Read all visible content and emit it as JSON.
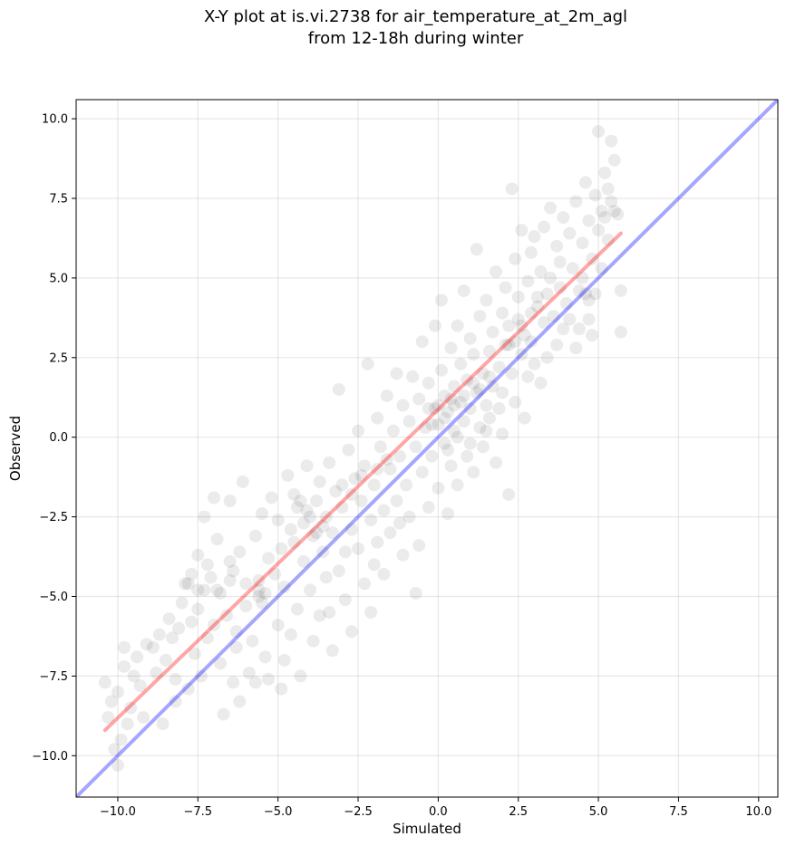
{
  "chart_data": {
    "type": "scatter",
    "title": "X-Y plot at is.vi.2738 for air_temperature_at_2m_agl",
    "subtitle": "from 12-18h during winter",
    "xlabel": "Simulated",
    "ylabel": "Observed",
    "xlim": [
      -11.3,
      10.6
    ],
    "ylim": [
      -11.3,
      10.6
    ],
    "xticks": [
      -10.0,
      -7.5,
      -5.0,
      -2.5,
      0.0,
      2.5,
      5.0,
      7.5,
      10.0
    ],
    "yticks": [
      -10.0,
      -7.5,
      -5.0,
      -2.5,
      0.0,
      2.5,
      5.0,
      7.5,
      10.0
    ],
    "xtick_labels": [
      "−10.0",
      "−7.5",
      "−5.0",
      "−2.5",
      "0.0",
      "2.5",
      "5.0",
      "7.5",
      "10.0"
    ],
    "ytick_labels": [
      "−10.0",
      "−7.5",
      "−5.0",
      "−2.5",
      "0.0",
      "2.5",
      "5.0",
      "7.5",
      "10.0"
    ],
    "grid": true,
    "marker_color": "#000000",
    "marker_alpha": 0.08,
    "lines": [
      {
        "role": "one-to-one",
        "color": "#0000ff",
        "alpha": 0.35,
        "x": [
          -11.3,
          10.6
        ],
        "y": [
          -11.3,
          10.6
        ]
      },
      {
        "role": "regression-fit",
        "color": "#ff0000",
        "alpha": 0.35,
        "x": [
          -10.4,
          5.7
        ],
        "y": [
          -9.2,
          6.4
        ]
      }
    ],
    "points": [
      [
        -10.4,
        -7.7
      ],
      [
        -10.3,
        -8.8
      ],
      [
        -10.2,
        -8.3
      ],
      [
        -10.1,
        -9.8
      ],
      [
        -10.0,
        -10.3
      ],
      [
        -10.0,
        -8.0
      ],
      [
        -9.9,
        -9.5
      ],
      [
        -9.8,
        -7.2
      ],
      [
        -9.8,
        -6.6
      ],
      [
        -9.7,
        -9.0
      ],
      [
        -9.6,
        -8.5
      ],
      [
        -9.5,
        -7.5
      ],
      [
        -9.4,
        -6.9
      ],
      [
        -9.3,
        -7.8
      ],
      [
        -9.1,
        -6.5
      ],
      [
        -8.9,
        -6.6
      ],
      [
        -8.8,
        -7.4
      ],
      [
        -8.7,
        -6.2
      ],
      [
        -8.6,
        -9.0
      ],
      [
        -8.5,
        -7.0
      ],
      [
        -8.4,
        -5.7
      ],
      [
        -8.3,
        -6.3
      ],
      [
        -8.2,
        -8.3
      ],
      [
        -8.1,
        -6.0
      ],
      [
        -8.0,
        -5.2
      ],
      [
        -7.9,
        -4.6
      ],
      [
        -7.8,
        -7.9
      ],
      [
        -7.7,
        -5.8
      ],
      [
        -7.7,
        -4.3
      ],
      [
        -7.6,
        -6.8
      ],
      [
        -7.5,
        -5.4
      ],
      [
        -7.5,
        -3.7
      ],
      [
        -7.4,
        -7.5
      ],
      [
        -7.3,
        -4.8
      ],
      [
        -7.3,
        -2.5
      ],
      [
        -7.2,
        -6.3
      ],
      [
        -7.1,
        -4.4
      ],
      [
        -7.0,
        -1.9
      ],
      [
        -7.0,
        -5.9
      ],
      [
        -6.9,
        -3.2
      ],
      [
        -6.8,
        -7.1
      ],
      [
        -6.8,
        -4.9
      ],
      [
        -6.7,
        -8.7
      ],
      [
        -6.6,
        -5.6
      ],
      [
        -6.5,
        -3.9
      ],
      [
        -6.5,
        -2.0
      ],
      [
        -6.4,
        -7.7
      ],
      [
        -6.4,
        -4.2
      ],
      [
        -6.3,
        -6.1
      ],
      [
        -6.2,
        -8.3
      ],
      [
        -6.2,
        -3.6
      ],
      [
        -6.1,
        -1.4
      ],
      [
        -6.0,
        -5.3
      ],
      [
        -6.0,
        -4.6
      ],
      [
        -5.9,
        -7.4
      ],
      [
        -5.8,
        -6.4
      ],
      [
        -5.7,
        -3.1
      ],
      [
        -5.6,
        -5.0
      ],
      [
        -5.6,
        -4.8
      ],
      [
        -5.5,
        -2.4
      ],
      [
        -5.5,
        -5.2
      ],
      [
        -5.4,
        -6.9
      ],
      [
        -5.3,
        -3.8
      ],
      [
        -5.3,
        -7.6
      ],
      [
        -5.2,
        -1.9
      ],
      [
        -5.1,
        -4.3
      ],
      [
        -5.0,
        -2.6
      ],
      [
        -5.0,
        -5.9
      ],
      [
        -4.9,
        -3.5
      ],
      [
        -4.8,
        -7.0
      ],
      [
        -4.8,
        -4.7
      ],
      [
        -4.7,
        -1.2
      ],
      [
        -4.6,
        -2.9
      ],
      [
        -4.6,
        -6.2
      ],
      [
        -4.5,
        -3.3
      ],
      [
        -4.4,
        -2.2
      ],
      [
        -4.4,
        -5.4
      ],
      [
        -4.3,
        -7.5
      ],
      [
        -4.2,
        -2.7
      ],
      [
        -4.2,
        -3.9
      ],
      [
        -4.1,
        -2.3
      ],
      [
        -4.1,
        -0.9
      ],
      [
        -4.0,
        -4.8
      ],
      [
        -3.9,
        -3.1
      ],
      [
        -3.9,
        -6.4
      ],
      [
        -3.8,
        -2.0
      ],
      [
        -3.7,
        -1.4
      ],
      [
        -3.7,
        -5.6
      ],
      [
        -3.6,
        -3.6
      ],
      [
        -3.5,
        -2.5
      ],
      [
        -3.5,
        -4.4
      ],
      [
        -3.4,
        -0.8
      ],
      [
        -3.3,
        -3.0
      ],
      [
        -3.3,
        -6.7
      ],
      [
        -3.2,
        -1.7
      ],
      [
        -3.1,
        -4.2
      ],
      [
        -3.1,
        1.5
      ],
      [
        -3.0,
        -2.2
      ],
      [
        -2.9,
        -3.6
      ],
      [
        -2.9,
        -5.1
      ],
      [
        -2.8,
        -0.4
      ],
      [
        -2.7,
        -2.9
      ],
      [
        -2.7,
        -6.1
      ],
      [
        -2.6,
        -1.3
      ],
      [
        -2.5,
        -3.5
      ],
      [
        -2.5,
        0.2
      ],
      [
        -2.4,
        -2.0
      ],
      [
        -2.3,
        -4.6
      ],
      [
        -2.3,
        -0.9
      ],
      [
        -2.2,
        2.3
      ],
      [
        -2.1,
        -2.6
      ],
      [
        -2.1,
        -5.5
      ],
      [
        -2.0,
        -1.5
      ],
      [
        -1.9,
        0.6
      ],
      [
        -1.9,
        -3.3
      ],
      [
        -1.8,
        -0.3
      ],
      [
        -1.7,
        -2.3
      ],
      [
        -1.7,
        -4.3
      ],
      [
        -1.6,
        1.3
      ],
      [
        -1.5,
        -1.0
      ],
      [
        -1.5,
        -3.0
      ],
      [
        -1.4,
        0.2
      ],
      [
        -1.3,
        -2.0
      ],
      [
        -1.3,
        2.0
      ],
      [
        -1.2,
        -0.6
      ],
      [
        -1.1,
        -3.7
      ],
      [
        -1.1,
        1.0
      ],
      [
        -1.0,
        -1.5
      ],
      [
        -0.9,
        0.5
      ],
      [
        -0.9,
        -2.5
      ],
      [
        -0.8,
        1.9
      ],
      [
        -0.7,
        -0.3
      ],
      [
        -0.7,
        -4.9
      ],
      [
        -0.6,
        1.2
      ],
      [
        -0.5,
        -1.1
      ],
      [
        -0.5,
        3.0
      ],
      [
        -0.4,
        0.3
      ],
      [
        -0.3,
        -2.2
      ],
      [
        -0.3,
        1.7
      ],
      [
        -0.2,
        -0.6
      ],
      [
        -0.1,
        3.5
      ],
      [
        -0.1,
        0.9
      ],
      [
        0.0,
        -1.6
      ],
      [
        0.0,
        0.4
      ],
      [
        0.1,
        2.1
      ],
      [
        0.1,
        4.3
      ],
      [
        0.2,
        -0.2
      ],
      [
        0.2,
        1.3
      ],
      [
        0.3,
        -2.4
      ],
      [
        0.3,
        0.8
      ],
      [
        0.4,
        2.8
      ],
      [
        0.4,
        -0.9
      ],
      [
        0.5,
        1.6
      ],
      [
        0.5,
        0.2
      ],
      [
        0.6,
        3.5
      ],
      [
        0.6,
        -1.5
      ],
      [
        0.7,
        1.1
      ],
      [
        0.7,
        2.3
      ],
      [
        0.8,
        0.5
      ],
      [
        0.8,
        4.6
      ],
      [
        0.9,
        -0.6
      ],
      [
        0.9,
        1.8
      ],
      [
        1.0,
        0.9
      ],
      [
        1.0,
        3.1
      ],
      [
        1.1,
        -1.1
      ],
      [
        1.1,
        2.6
      ],
      [
        1.2,
        1.4
      ],
      [
        1.2,
        5.9
      ],
      [
        1.3,
        0.3
      ],
      [
        1.3,
        3.8
      ],
      [
        1.4,
        2.0
      ],
      [
        1.4,
        -0.3
      ],
      [
        1.5,
        1.0
      ],
      [
        1.5,
        4.3
      ],
      [
        1.6,
        2.7
      ],
      [
        1.6,
        0.6
      ],
      [
        1.7,
        3.3
      ],
      [
        1.7,
        1.6
      ],
      [
        1.8,
        -0.8
      ],
      [
        1.8,
        5.2
      ],
      [
        1.9,
        2.2
      ],
      [
        1.9,
        0.9
      ],
      [
        2.0,
        3.9
      ],
      [
        2.0,
        1.4
      ],
      [
        2.1,
        4.7
      ],
      [
        2.1,
        2.9
      ],
      [
        2.2,
        -1.8
      ],
      [
        2.2,
        3.5
      ],
      [
        2.3,
        7.8
      ],
      [
        2.3,
        2.0
      ],
      [
        2.4,
        5.6
      ],
      [
        2.4,
        1.1
      ],
      [
        2.5,
        3.7
      ],
      [
        2.5,
        4.4
      ],
      [
        2.6,
        2.6
      ],
      [
        2.6,
        6.5
      ],
      [
        2.7,
        0.6
      ],
      [
        2.7,
        3.2
      ],
      [
        2.8,
        4.9
      ],
      [
        2.8,
        1.9
      ],
      [
        2.9,
        5.8
      ],
      [
        2.9,
        3.0
      ],
      [
        3.0,
        6.3
      ],
      [
        3.0,
        2.3
      ],
      [
        3.1,
        4.1
      ],
      [
        3.2,
        5.2
      ],
      [
        3.2,
        1.7
      ],
      [
        3.3,
        3.6
      ],
      [
        3.3,
        6.6
      ],
      [
        3.4,
        4.5
      ],
      [
        3.4,
        2.5
      ],
      [
        3.5,
        5.0
      ],
      [
        3.5,
        7.2
      ],
      [
        3.6,
        3.8
      ],
      [
        3.7,
        6.0
      ],
      [
        3.7,
        2.9
      ],
      [
        3.8,
        4.7
      ],
      [
        3.8,
        5.5
      ],
      [
        3.9,
        3.4
      ],
      [
        3.9,
        6.9
      ],
      [
        4.0,
        4.2
      ],
      [
        4.1,
        6.4
      ],
      [
        4.1,
        3.7
      ],
      [
        4.2,
        5.3
      ],
      [
        4.3,
        7.4
      ],
      [
        4.3,
        2.8
      ],
      [
        4.4,
        4.6
      ],
      [
        4.5,
        6.1
      ],
      [
        4.5,
        5.0
      ],
      [
        4.6,
        8.0
      ],
      [
        4.7,
        4.3
      ],
      [
        4.7,
        6.8
      ],
      [
        4.8,
        3.2
      ],
      [
        4.8,
        5.6
      ],
      [
        4.9,
        7.6
      ],
      [
        4.9,
        4.5
      ],
      [
        5.0,
        9.6
      ],
      [
        5.0,
        6.5
      ],
      [
        5.1,
        7.1
      ],
      [
        5.1,
        5.3
      ],
      [
        5.2,
        8.3
      ],
      [
        5.2,
        6.9
      ],
      [
        5.3,
        7.8
      ],
      [
        5.3,
        6.2
      ],
      [
        5.4,
        9.3
      ],
      [
        5.4,
        7.4
      ],
      [
        5.5,
        8.7
      ],
      [
        5.5,
        7.1
      ],
      [
        5.6,
        7.0
      ],
      [
        5.7,
        4.6
      ],
      [
        5.7,
        3.3
      ],
      [
        4.7,
        3.7
      ],
      [
        4.6,
        4.5
      ],
      [
        4.4,
        3.4
      ],
      [
        -9.2,
        -8.8
      ],
      [
        -8.2,
        -7.6
      ],
      [
        -6.3,
        -6.6
      ],
      [
        -5.7,
        -7.7
      ],
      [
        -4.9,
        -7.9
      ],
      [
        -3.4,
        -5.5
      ],
      [
        -2.0,
        -4.0
      ],
      [
        -1.2,
        -2.7
      ],
      [
        -0.6,
        -3.4
      ],
      [
        0.3,
        -0.4
      ],
      [
        0.6,
        0.0
      ],
      [
        1.0,
        -0.2
      ],
      [
        1.5,
        0.2
      ],
      [
        2.0,
        0.1
      ],
      [
        -5.6,
        -4.5
      ],
      [
        -5.4,
        -4.9
      ],
      [
        -4.3,
        -2.0
      ],
      [
        -4.0,
        -2.5
      ],
      [
        -3.8,
        -3.0
      ],
      [
        -3.6,
        -2.8
      ],
      [
        -4.5,
        -1.8
      ],
      [
        -6.5,
        -4.5
      ],
      [
        -7.2,
        -4.0
      ],
      [
        -7.8,
        -4.6
      ],
      [
        -7.5,
        -4.8
      ],
      [
        -6.9,
        -4.8
      ],
      [
        -0.3,
        0.9
      ],
      [
        0.2,
        0.6
      ],
      [
        0.5,
        1.0
      ],
      [
        0.8,
        1.3
      ],
      [
        1.1,
        1.7
      ],
      [
        1.3,
        1.5
      ],
      [
        1.6,
        1.9
      ],
      [
        0.0,
        1.0
      ],
      [
        -0.2,
        0.4
      ],
      [
        0.4,
        1.2
      ],
      [
        2.2,
        2.9
      ],
      [
        2.6,
        3.5
      ],
      [
        2.9,
        3.9
      ],
      [
        3.1,
        4.4
      ],
      [
        2.4,
        3.0
      ],
      [
        -1.6,
        -0.7
      ],
      [
        -2.4,
        -1.2
      ],
      [
        -2.7,
        -1.8
      ],
      [
        -1.9,
        -1.0
      ],
      [
        -3.0,
        -1.5
      ]
    ]
  }
}
